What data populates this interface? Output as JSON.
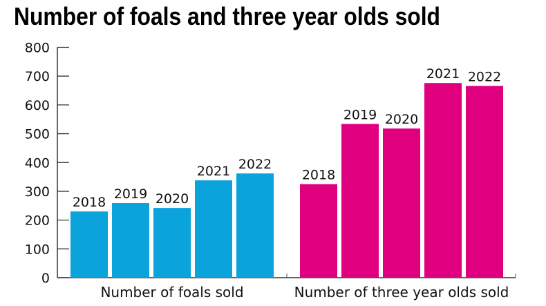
{
  "chart_data": {
    "type": "bar",
    "title": "Number of foals and three year olds sold",
    "xlabel": "",
    "ylabel": "",
    "ylim": [
      0,
      800
    ],
    "yticks": [
      0,
      100,
      200,
      300,
      400,
      500,
      600,
      700,
      800
    ],
    "grid": false,
    "groups": [
      {
        "name": "Number of foals sold",
        "color": "#0aa3dc",
        "categories": [
          "2018",
          "2019",
          "2020",
          "2021",
          "2022"
        ],
        "values": [
          230,
          259,
          242,
          338,
          362
        ]
      },
      {
        "name": "Number of three year olds sold",
        "color": "#e0007f",
        "categories": [
          "2018",
          "2019",
          "2020",
          "2021",
          "2022"
        ],
        "values": [
          325,
          534,
          518,
          676,
          666
        ]
      }
    ]
  }
}
